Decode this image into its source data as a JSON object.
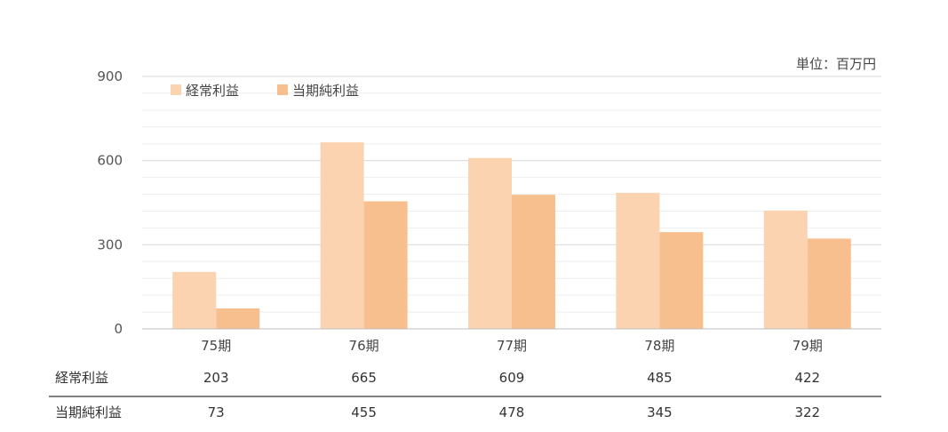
{
  "unit_label": "単位：百万円",
  "chart_data": {
    "type": "bar",
    "categories": [
      "75期",
      "76期",
      "77期",
      "78期",
      "79期"
    ],
    "series": [
      {
        "name": "経常利益",
        "values": [
          203,
          665,
          609,
          485,
          422
        ],
        "color": "#fbd3b1"
      },
      {
        "name": "当期純利益",
        "values": [
          73,
          455,
          478,
          345,
          322
        ],
        "color": "#f8bf8e"
      }
    ],
    "yticks": [
      0,
      300,
      600,
      900
    ],
    "ylim": [
      0,
      900
    ],
    "grid": true,
    "legend": "top-left"
  },
  "table": {
    "rows": [
      {
        "label": "経常利益",
        "values": [
          "203",
          "665",
          "609",
          "485",
          "422"
        ]
      },
      {
        "label": "当期純利益",
        "values": [
          "73",
          "455",
          "478",
          "345",
          "322"
        ]
      }
    ]
  }
}
